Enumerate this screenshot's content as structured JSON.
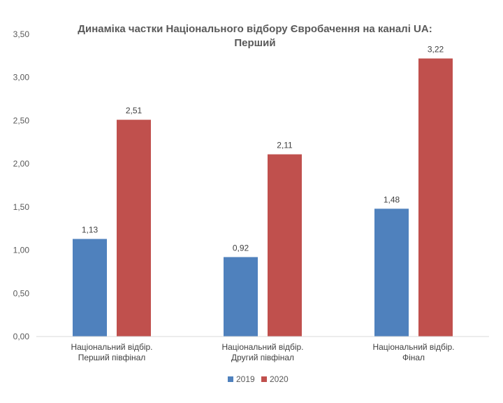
{
  "chart_data": {
    "type": "bar",
    "title": "Динаміка частки Національного відбору Євробачення на каналі UA: Перший",
    "title_lines": [
      "Динаміка частки Національного відбору Євробачення на каналі UA:",
      "Перший"
    ],
    "categories": [
      [
        "Національний відбір.",
        "Перший півфінал"
      ],
      [
        "Національний відбір.",
        "Другий півфінал"
      ],
      [
        "Національний відбір.",
        "Фінал"
      ]
    ],
    "series": [
      {
        "name": "2019",
        "color": "#4F81BD",
        "values": [
          1.13,
          0.92,
          1.48
        ],
        "labels": [
          "1,13",
          "0,92",
          "1,48"
        ]
      },
      {
        "name": "2020",
        "color": "#C0504D",
        "values": [
          2.51,
          2.11,
          3.22
        ],
        "labels": [
          "2,51",
          "2,11",
          "3,22"
        ]
      }
    ],
    "yticks": [
      0,
      0.5,
      1.0,
      1.5,
      2.0,
      2.5,
      3.0,
      3.5
    ],
    "ytick_labels": [
      "0,00",
      "0,50",
      "1,00",
      "1,50",
      "2,00",
      "2,50",
      "3,00",
      "3,50"
    ],
    "ylim": [
      0,
      3.5
    ],
    "xlabel": "",
    "ylabel": "",
    "grid": false,
    "legend_position": "bottom"
  }
}
